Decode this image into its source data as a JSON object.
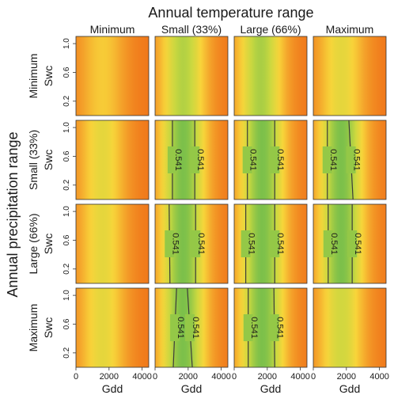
{
  "chart_data": {
    "type": "heatmap",
    "title": "Annual temperature range",
    "row_title": "Annual precipitation range",
    "column_labels": [
      "Minimum",
      "Small (33%)",
      "Large (66%)",
      "Maximum"
    ],
    "row_labels": [
      "Minimum",
      "Small (33%)",
      "Large (66%)",
      "Maximum"
    ],
    "xlabel": "Gdd",
    "ylabel": "Swc",
    "x_ticks": [
      0,
      2000,
      4000
    ],
    "y_ticks": [
      0.2,
      0.6,
      1.0
    ],
    "xlim": [
      0,
      4400
    ],
    "ylim": [
      0,
      1.1
    ],
    "contour_value": "0.541",
    "colormap": [
      "#f0761a",
      "#f4a22a",
      "#f8d53a",
      "#c8d840",
      "#7cc04a"
    ],
    "grid": false,
    "legend": "none",
    "panels": [
      [
        {
          "peak_gdd": 1600,
          "max_level": 0.45,
          "contours": []
        },
        {
          "peak_gdd": 1700,
          "max_level": 0.82,
          "contours": []
        },
        {
          "peak_gdd": 1600,
          "max_level": 0.85,
          "contours": []
        },
        {
          "peak_gdd": 1700,
          "max_level": 0.6,
          "contours": []
        }
      ],
      [
        {
          "peak_gdd": 1600,
          "max_level": 0.6,
          "contours": []
        },
        {
          "peak_gdd": 1700,
          "max_level": 1.0,
          "contours": [
            {
              "gdd_start": 1050,
              "gdd_end": 1050,
              "y_from": 0.0,
              "y_to": 1.1
            },
            {
              "gdd_start": 2400,
              "gdd_end": 2400,
              "y_from": 0.0,
              "y_to": 1.1
            }
          ]
        },
        {
          "peak_gdd": 1700,
          "max_level": 1.0,
          "contours": [
            {
              "gdd_start": 800,
              "gdd_end": 800,
              "y_from": 0.0,
              "y_to": 1.1
            },
            {
              "gdd_start": 2450,
              "gdd_end": 2450,
              "y_from": 0.0,
              "y_to": 1.1
            }
          ]
        },
        {
          "peak_gdd": 1700,
          "max_level": 1.0,
          "contours": [
            {
              "gdd_start": 850,
              "gdd_end": 850,
              "y_from": 0.0,
              "y_to": 1.1
            },
            {
              "gdd_start": 2400,
              "gdd_end": 2150,
              "y_from": 0.0,
              "y_to": 1.1
            }
          ]
        }
      ],
      [
        {
          "peak_gdd": 1600,
          "max_level": 0.6,
          "contours": []
        },
        {
          "peak_gdd": 1700,
          "max_level": 1.0,
          "contours": [
            {
              "gdd_start": 900,
              "gdd_end": 850,
              "y_from": 0.0,
              "y_to": 1.1
            },
            {
              "gdd_start": 2450,
              "gdd_end": 2450,
              "y_from": 0.0,
              "y_to": 1.1
            }
          ]
        },
        {
          "peak_gdd": 1700,
          "max_level": 1.0,
          "contours": [
            {
              "gdd_start": 700,
              "gdd_end": 700,
              "y_from": 0.0,
              "y_to": 1.1
            },
            {
              "gdd_start": 2450,
              "gdd_end": 2450,
              "y_from": 0.0,
              "y_to": 1.1
            }
          ]
        },
        {
          "peak_gdd": 1700,
          "max_level": 1.0,
          "contours": [
            {
              "gdd_start": 900,
              "gdd_end": 900,
              "y_from": 0.0,
              "y_to": 1.1
            },
            {
              "gdd_start": 2350,
              "gdd_end": 2350,
              "y_from": 0.0,
              "y_to": 1.1
            }
          ]
        }
      ],
      [
        {
          "peak_gdd": 1600,
          "max_level": 0.6,
          "contours": []
        },
        {
          "peak_gdd": 1700,
          "max_level": 1.0,
          "contours": [
            {
              "gdd_start": 1100,
              "gdd_end": 1300,
              "y_from": 0.0,
              "y_to": 1.1
            },
            {
              "gdd_start": 2250,
              "gdd_end": 1950,
              "y_from": 0.0,
              "y_to": 1.1
            }
          ]
        },
        {
          "peak_gdd": 1700,
          "max_level": 1.0,
          "contours": [
            {
              "gdd_start": 850,
              "gdd_end": 850,
              "y_from": 0.0,
              "y_to": 1.1
            },
            {
              "gdd_start": 2450,
              "gdd_end": 2400,
              "y_from": 0.0,
              "y_to": 1.1
            }
          ]
        },
        {
          "peak_gdd": 1700,
          "max_level": 0.7,
          "contours": []
        }
      ]
    ]
  }
}
